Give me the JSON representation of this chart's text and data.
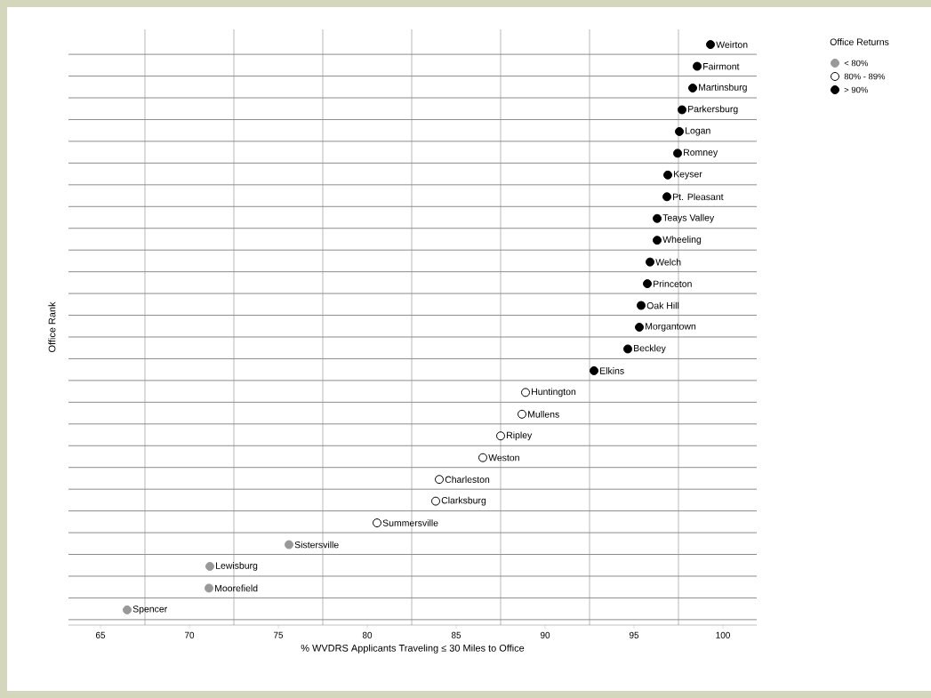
{
  "chart_data": {
    "type": "scatter",
    "orientation": "horizontal",
    "xlabel": "% WVDRS Applicants Traveling ≤ 30 Miles to Office",
    "ylabel": "Office Rank",
    "legend_title": "Office Returns",
    "categories": [
      "Weirton",
      "Fairmont",
      "Martinsburg",
      "Parkersburg",
      "Logan",
      "Romney",
      "Keyser",
      "Pt. Pleasant",
      "Teays Valley",
      "Wheeling",
      "Welch",
      "Princeton",
      "Oak Hill",
      "Morgantown",
      "Beckley",
      "Elkins",
      "Huntington",
      "Mullens",
      "Ripley",
      "Weston",
      "Charleston",
      "Clarksburg",
      "Summersville",
      "Sistersville",
      "Lewisburg",
      "Moorefield",
      "Spencer"
    ],
    "series": [
      {
        "name": "< 80%",
        "color": "#999999",
        "values": [
          null,
          null,
          null,
          null,
          null,
          null,
          null,
          null,
          null,
          null,
          null,
          null,
          null,
          null,
          null,
          null,
          null,
          null,
          null,
          null,
          null,
          null,
          null,
          75.6,
          71.15,
          71.1,
          66.5
        ]
      },
      {
        "name": "80% - 89%",
        "color": "#ffffff",
        "values": [
          null,
          null,
          null,
          null,
          null,
          null,
          null,
          null,
          null,
          null,
          null,
          null,
          null,
          null,
          null,
          null,
          88.9,
          88.7,
          87.5,
          86.5,
          84.05,
          83.85,
          80.55,
          null,
          null,
          null,
          null
        ]
      },
      {
        "name": "> 90%",
        "color": "#000000",
        "values": [
          99.3,
          98.55,
          98.3,
          97.7,
          97.55,
          97.45,
          96.9,
          96.85,
          96.3,
          96.3,
          95.9,
          95.75,
          95.4,
          95.3,
          94.65,
          92.75,
          null,
          null,
          null,
          null,
          null,
          null,
          null,
          null,
          null,
          null,
          null
        ]
      }
    ],
    "xlim": [
      63.2,
      101.9
    ],
    "xticks": [
      65,
      70,
      75,
      80,
      85,
      90,
      95,
      100
    ],
    "grid": true,
    "legend": "top right",
    "marker": "circle",
    "tick_labels": "x"
  }
}
